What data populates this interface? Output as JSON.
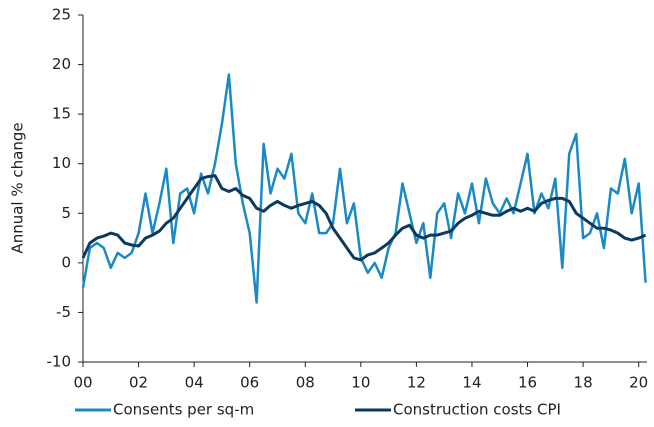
{
  "chart_data": {
    "type": "line",
    "ylabel": "Annual % change",
    "x": [
      2000,
      2000.25,
      2000.5,
      2000.75,
      2001,
      2001.25,
      2001.5,
      2001.75,
      2002,
      2002.25,
      2002.5,
      2002.75,
      2003,
      2003.25,
      2003.5,
      2003.75,
      2004,
      2004.25,
      2004.5,
      2004.75,
      2005,
      2005.25,
      2005.5,
      2005.75,
      2006,
      2006.25,
      2006.5,
      2006.75,
      2007,
      2007.25,
      2007.5,
      2007.75,
      2008,
      2008.25,
      2008.5,
      2008.75,
      2009,
      2009.25,
      2009.5,
      2009.75,
      2010,
      2010.25,
      2010.5,
      2010.75,
      2011,
      2011.25,
      2011.5,
      2011.75,
      2012,
      2012.25,
      2012.5,
      2012.75,
      2013,
      2013.25,
      2013.5,
      2013.75,
      2014,
      2014.25,
      2014.5,
      2014.75,
      2015,
      2015.25,
      2015.5,
      2015.75,
      2016,
      2016.25,
      2016.5,
      2016.75,
      2017,
      2017.25,
      2017.5,
      2017.75,
      2018,
      2018.25,
      2018.5,
      2018.75,
      2019,
      2019.25,
      2019.5,
      2019.75,
      2020,
      2020.25
    ],
    "series": [
      {
        "name": "Consents per sq-m",
        "color": "#1a8ac6",
        "values": [
          -2.5,
          1.5,
          2,
          1.5,
          -0.5,
          1,
          0.5,
          1,
          3,
          7,
          3,
          6,
          9.5,
          2,
          7,
          7.5,
          5,
          9,
          7,
          10,
          14,
          19,
          10,
          6,
          3,
          -4,
          12,
          7,
          9.5,
          8.5,
          11,
          5,
          4,
          7,
          3,
          3,
          4,
          9.5,
          4,
          6,
          0.5,
          -1,
          0,
          -1.5,
          1.5,
          3,
          8,
          5,
          2,
          4,
          -1.5,
          5,
          6,
          2.5,
          7,
          5,
          8,
          4,
          8.5,
          6,
          5,
          6.5,
          5,
          8,
          11,
          5,
          7,
          5.5,
          8.5,
          -0.5,
          11,
          13,
          2.5,
          3,
          5,
          1.5,
          7.5,
          7,
          10.5,
          5,
          8,
          -2
        ]
      },
      {
        "name": "Construction costs CPI",
        "color": "#0b3a5e",
        "values": [
          0.5,
          2,
          2.5,
          2.7,
          3,
          2.8,
          2,
          1.8,
          1.7,
          2.5,
          2.8,
          3.2,
          4,
          4.5,
          5.5,
          6.5,
          7.5,
          8.5,
          8.7,
          8.8,
          7.5,
          7.2,
          7.5,
          6.8,
          6.5,
          5.5,
          5.2,
          5.8,
          6.2,
          5.8,
          5.5,
          5.8,
          6,
          6.2,
          5.8,
          5,
          3.5,
          2.5,
          1.5,
          0.5,
          0.3,
          0.8,
          1,
          1.5,
          2,
          2.8,
          3.5,
          3.8,
          2.8,
          2.5,
          2.8,
          2.8,
          3,
          3.2,
          4,
          4.5,
          4.8,
          5.2,
          5,
          4.8,
          4.8,
          5.2,
          5.5,
          5.2,
          5.5,
          5.2,
          6,
          6.3,
          6.5,
          6.5,
          6.2,
          5,
          4.5,
          4,
          3.5,
          3.5,
          3.3,
          3,
          2.5,
          2.3,
          2.5,
          2.8
        ]
      }
    ],
    "xlim": [
      2000,
      2020.3
    ],
    "xticks": [
      {
        "value": 2000,
        "label": "00"
      },
      {
        "value": 2002,
        "label": "02"
      },
      {
        "value": 2004,
        "label": "04"
      },
      {
        "value": 2006,
        "label": "06"
      },
      {
        "value": 2008,
        "label": "08"
      },
      {
        "value": 2010,
        "label": "10"
      },
      {
        "value": 2012,
        "label": "12"
      },
      {
        "value": 2014,
        "label": "14"
      },
      {
        "value": 2016,
        "label": "16"
      },
      {
        "value": 2018,
        "label": "18"
      },
      {
        "value": 2020,
        "label": "20"
      }
    ],
    "ylim": [
      -10,
      25
    ],
    "yticks": [
      -10,
      -5,
      0,
      5,
      10,
      15,
      20,
      25
    ],
    "legend": "bottom"
  }
}
